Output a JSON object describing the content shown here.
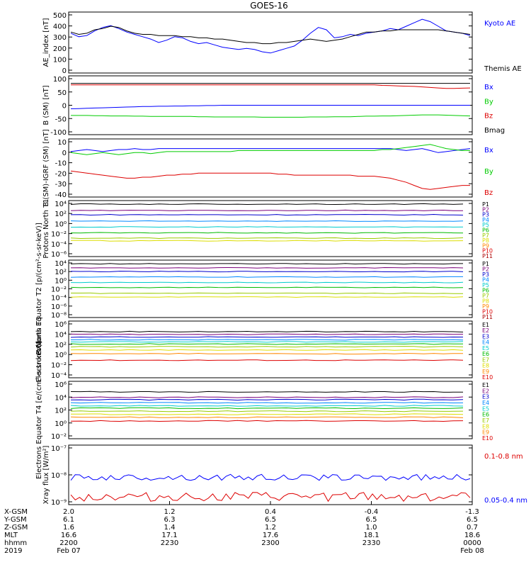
{
  "title": "GOES-16",
  "chart_data": [
    {
      "type": "line",
      "ylabel": "AE_index [nT]",
      "y_ticks": [
        "500",
        "400",
        "300",
        "200",
        "100",
        "0"
      ],
      "ylim": [
        0,
        500
      ],
      "legend": [
        {
          "label": "Kyoto AE",
          "color": "#0000ff"
        },
        {
          "label": "Themis AE",
          "color": "#000000"
        }
      ],
      "series": [
        {
          "name": "Kyoto AE",
          "color": "#0000ff",
          "values": [
            330,
            300,
            310,
            350,
            380,
            395,
            370,
            340,
            320,
            300,
            280,
            250,
            270,
            300,
            290,
            260,
            240,
            250,
            230,
            210,
            200,
            190,
            200,
            190,
            170,
            160,
            180,
            200,
            220,
            270,
            330,
            380,
            360,
            290,
            300,
            320,
            310,
            330,
            340,
            350,
            370,
            360,
            390,
            420,
            450,
            430,
            390,
            350,
            340,
            330,
            310
          ]
        },
        {
          "name": "Themis AE",
          "color": "#000000",
          "values": [
            340,
            320,
            330,
            360,
            370,
            390,
            380,
            350,
            330,
            320,
            320,
            310,
            310,
            310,
            300,
            300,
            290,
            290,
            280,
            280,
            270,
            260,
            250,
            250,
            240,
            240,
            250,
            250,
            260,
            270,
            280,
            270,
            260,
            270,
            280,
            300,
            320,
            340,
            340,
            350,
            350,
            360,
            360,
            360,
            360,
            360,
            360,
            350,
            340,
            330,
            320
          ]
        }
      ]
    },
    {
      "type": "line",
      "ylabel": "B (SM) [nT]",
      "y_ticks": [
        "100",
        "50",
        "0",
        "-50",
        "-100"
      ],
      "ylim": [
        -110,
        110
      ],
      "legend": [
        {
          "label": "Bx",
          "color": "#0000ff"
        },
        {
          "label": "By",
          "color": "#00cc00"
        },
        {
          "label": "Bz",
          "color": "#dd0000"
        },
        {
          "label": "Bmag",
          "color": "#000000"
        }
      ],
      "series": [
        {
          "name": "Bmag",
          "color": "#000000",
          "values": [
            86,
            86,
            86,
            86,
            86,
            86,
            86,
            86,
            86,
            86,
            86,
            86,
            86,
            86,
            86,
            86,
            86,
            86,
            86,
            86,
            86,
            86,
            86,
            86,
            86,
            86,
            86,
            86,
            86,
            86,
            86,
            86,
            86,
            86,
            86,
            86,
            86,
            86,
            86,
            86,
            86,
            86,
            86,
            86,
            86,
            86,
            86,
            86,
            86,
            86,
            86
          ]
        },
        {
          "name": "Bz",
          "color": "#dd0000",
          "values": [
            80,
            80,
            80,
            80,
            80,
            80,
            80,
            80,
            80,
            80,
            80,
            80,
            80,
            80,
            80,
            80,
            80,
            80,
            80,
            80,
            80,
            80,
            80,
            80,
            80,
            80,
            80,
            80,
            80,
            80,
            80,
            80,
            80,
            80,
            80,
            80,
            80,
            80,
            80,
            78,
            77,
            76,
            75,
            74,
            72,
            70,
            68,
            66,
            66,
            67,
            68
          ]
        },
        {
          "name": "Bx",
          "color": "#0000ff",
          "values": [
            -14,
            -13,
            -12,
            -11,
            -10,
            -9,
            -8,
            -7,
            -6,
            -5,
            -5,
            -4,
            -4,
            -3,
            -3,
            -2,
            -2,
            -1,
            -1,
            0,
            0,
            0,
            0,
            0,
            0,
            0,
            0,
            0,
            0,
            0,
            0,
            0,
            0,
            0,
            0,
            0,
            0,
            0,
            0,
            0,
            0,
            0,
            0,
            0,
            0,
            0,
            0,
            0,
            0,
            0,
            0
          ]
        },
        {
          "name": "By",
          "color": "#00cc00",
          "values": [
            -40,
            -40,
            -40,
            -41,
            -41,
            -42,
            -42,
            -42,
            -43,
            -43,
            -44,
            -44,
            -44,
            -44,
            -44,
            -44,
            -45,
            -45,
            -46,
            -46,
            -46,
            -46,
            -46,
            -46,
            -47,
            -47,
            -47,
            -47,
            -47,
            -47,
            -46,
            -46,
            -46,
            -45,
            -45,
            -45,
            -44,
            -43,
            -43,
            -42,
            -42,
            -41,
            -40,
            -39,
            -38,
            -38,
            -38,
            -39,
            -40,
            -41,
            -42
          ]
        }
      ]
    },
    {
      "type": "line",
      "ylabel": "B (SM)-IGRF (SM) [nT]",
      "y_ticks": [
        "10",
        "0",
        "-10",
        "-20",
        "-30",
        "-40"
      ],
      "ylim": [
        -42,
        12
      ],
      "legend": [
        {
          "label": "Bx",
          "color": "#0000ff"
        },
        {
          "label": "By",
          "color": "#00cc00"
        },
        {
          "label": "Bz",
          "color": "#dd0000"
        }
      ],
      "series": [
        {
          "name": "Bx",
          "color": "#0000ff",
          "values": [
            1,
            2,
            3,
            2,
            1,
            2,
            3,
            3,
            4,
            3,
            3,
            4,
            4,
            4,
            4,
            4,
            4,
            4,
            4,
            4,
            4,
            4,
            4,
            4,
            4,
            4,
            4,
            4,
            4,
            4,
            4,
            4,
            4,
            4,
            4,
            4,
            4,
            4,
            4,
            4,
            4,
            3,
            2,
            3,
            4,
            2,
            0,
            1,
            2,
            3,
            4
          ]
        },
        {
          "name": "By",
          "color": "#00cc00",
          "values": [
            0,
            -1,
            -2,
            -1,
            0,
            -1,
            -2,
            -1,
            0,
            0,
            -1,
            0,
            1,
            1,
            1,
            1,
            1,
            1,
            1,
            1,
            1,
            2,
            2,
            2,
            2,
            2,
            2,
            2,
            2,
            2,
            2,
            2,
            2,
            2,
            2,
            2,
            2,
            2,
            2,
            3,
            3,
            4,
            5,
            6,
            7,
            8,
            6,
            4,
            3,
            2,
            2
          ]
        },
        {
          "name": "Bz",
          "color": "#dd0000",
          "values": [
            -18,
            -19,
            -20,
            -21,
            -22,
            -23,
            -24,
            -25,
            -25,
            -24,
            -24,
            -23,
            -22,
            -22,
            -21,
            -21,
            -20,
            -20,
            -20,
            -20,
            -20,
            -20,
            -20,
            -20,
            -20,
            -20,
            -21,
            -21,
            -22,
            -22,
            -22,
            -22,
            -22,
            -22,
            -22,
            -22,
            -23,
            -23,
            -23,
            -24,
            -25,
            -27,
            -29,
            -32,
            -35,
            -36,
            -35,
            -34,
            -33,
            -32,
            -32
          ]
        }
      ]
    },
    {
      "type": "line",
      "ylabel": "Protons North T1",
      "scale": "log",
      "y_ticks": [
        "10⁴",
        "10²",
        "10⁰",
        "10⁻²",
        "10⁻⁴",
        "10⁻⁶"
      ],
      "ylim_exp": [
        -6,
        4
      ],
      "legend": [
        {
          "label": "P1",
          "color": "#000000"
        },
        {
          "label": "P2",
          "color": "#7a007a"
        },
        {
          "label": "P3",
          "color": "#0000cc"
        },
        {
          "label": "P4",
          "color": "#0088ff"
        },
        {
          "label": "P5",
          "color": "#00cccc"
        },
        {
          "label": "P6",
          "color": "#00bb00"
        },
        {
          "label": "P7",
          "color": "#99cc00"
        },
        {
          "label": "P8",
          "color": "#dddd00"
        },
        {
          "label": "P9",
          "color": "#ff8800"
        },
        {
          "label": "P10",
          "color": "#dd0000"
        },
        {
          "label": "P11",
          "color": "#aa0000"
        }
      ],
      "levels": [
        {
          "name": "P1",
          "color": "#000000",
          "base": 3.6
        },
        {
          "name": "P2",
          "color": "#7a007a",
          "base": 2.4
        },
        {
          "name": "P3",
          "color": "#0000cc",
          "base": 1.6
        },
        {
          "name": "P4",
          "color": "#0088ff",
          "base": 0.4
        },
        {
          "name": "P5",
          "color": "#00cccc",
          "base": -0.7
        },
        {
          "name": "P6",
          "color": "#00bb00",
          "base": -1.8
        },
        {
          "name": "P7",
          "color": "#99cc00",
          "base": -2.8
        },
        {
          "name": "P8",
          "color": "#dddd00",
          "base": -3.3
        }
      ]
    },
    {
      "type": "line",
      "ylabel": "Protons Equator T2 [p/(cm²-s-sr-keV)]",
      "scale": "log",
      "y_ticks": [
        "10⁴",
        "10²",
        "10⁰",
        "10⁻²",
        "10⁻⁴",
        "10⁻⁶",
        "10⁻⁸"
      ],
      "ylim_exp": [
        -8,
        4
      ],
      "legend": [
        {
          "label": "P1",
          "color": "#000000"
        },
        {
          "label": "P2",
          "color": "#7a007a"
        },
        {
          "label": "P3",
          "color": "#0000cc"
        },
        {
          "label": "P4",
          "color": "#0088ff"
        },
        {
          "label": "P5",
          "color": "#00cccc"
        },
        {
          "label": "P6",
          "color": "#00bb00"
        },
        {
          "label": "P7",
          "color": "#99cc00"
        },
        {
          "label": "P8",
          "color": "#dddd00"
        },
        {
          "label": "P9",
          "color": "#ff8800"
        },
        {
          "label": "P10",
          "color": "#dd0000"
        },
        {
          "label": "P11",
          "color": "#aa0000"
        }
      ],
      "levels": [
        {
          "name": "P1",
          "color": "#000000",
          "base": 3.5
        },
        {
          "name": "P2",
          "color": "#7a007a",
          "base": 2.6
        },
        {
          "name": "P3",
          "color": "#0000cc",
          "base": 1.8
        },
        {
          "name": "P4",
          "color": "#0088ff",
          "base": 0.6
        },
        {
          "name": "P5",
          "color": "#00cccc",
          "base": -0.6
        },
        {
          "name": "P6",
          "color": "#00bb00",
          "base": -1.7
        },
        {
          "name": "P7",
          "color": "#99cc00",
          "base": -3.0
        },
        {
          "name": "P8",
          "color": "#dddd00",
          "base": -3.8
        }
      ]
    },
    {
      "type": "line",
      "ylabel": "Electrons North T3",
      "scale": "log",
      "y_ticks": [
        "10⁶",
        "10⁴",
        "10²",
        "10⁰",
        "10⁻²",
        "10⁻⁴"
      ],
      "ylim_exp": [
        -4,
        6
      ],
      "legend": [
        {
          "label": "E1",
          "color": "#000000"
        },
        {
          "label": "E2",
          "color": "#7a007a"
        },
        {
          "label": "E3",
          "color": "#0000cc"
        },
        {
          "label": "E4",
          "color": "#0088ff"
        },
        {
          "label": "E5",
          "color": "#00cccc"
        },
        {
          "label": "E6",
          "color": "#00bb00"
        },
        {
          "label": "E7",
          "color": "#99cc00"
        },
        {
          "label": "E8",
          "color": "#dddd00"
        },
        {
          "label": "E9",
          "color": "#ff8800"
        },
        {
          "label": "E10",
          "color": "#dd0000"
        }
      ],
      "levels": [
        {
          "name": "E1",
          "color": "#000000",
          "base": 4.3
        },
        {
          "name": "E2",
          "color": "#7a007a",
          "base": 3.8
        },
        {
          "name": "E3",
          "color": "#0000cc",
          "base": 3.3
        },
        {
          "name": "E4",
          "color": "#0088ff",
          "base": 2.8
        },
        {
          "name": "E5",
          "color": "#00cccc",
          "base": 2.4
        },
        {
          "name": "E6",
          "color": "#00bb00",
          "base": 2.0
        },
        {
          "name": "E7",
          "color": "#99cc00",
          "base": 1.5
        },
        {
          "name": "E8",
          "color": "#dddd00",
          "base": 0.9
        },
        {
          "name": "E9",
          "color": "#ff8800",
          "base": 0.2
        },
        {
          "name": "E10",
          "color": "#dd0000",
          "base": -1.0
        }
      ]
    },
    {
      "type": "line",
      "ylabel": "Electrons Equator T4 [e/(cm²-s-sr-keV)]",
      "scale": "log",
      "y_ticks": [
        "10⁶",
        "10⁴",
        "10²",
        "10⁰",
        "10⁻²"
      ],
      "ylim_exp": [
        -3,
        6
      ],
      "legend": [
        {
          "label": "E1",
          "color": "#000000"
        },
        {
          "label": "E2",
          "color": "#7a007a"
        },
        {
          "label": "E3",
          "color": "#0000cc"
        },
        {
          "label": "E4",
          "color": "#0088ff"
        },
        {
          "label": "E5",
          "color": "#00cccc"
        },
        {
          "label": "E6",
          "color": "#00bb00"
        },
        {
          "label": "E7",
          "color": "#99cc00"
        },
        {
          "label": "E8",
          "color": "#dddd00"
        },
        {
          "label": "E9",
          "color": "#ff8800"
        },
        {
          "label": "E10",
          "color": "#dd0000"
        }
      ],
      "levels": [
        {
          "name": "E1",
          "color": "#000000",
          "base": 4.5
        },
        {
          "name": "E2",
          "color": "#7a007a",
          "base": 3.6
        },
        {
          "name": "E3",
          "color": "#0000cc",
          "base": 3.2
        },
        {
          "name": "E4",
          "color": "#0088ff",
          "base": 2.7
        },
        {
          "name": "E5",
          "color": "#00cccc",
          "base": 2.2
        },
        {
          "name": "E6",
          "color": "#00bb00",
          "base": 1.8
        },
        {
          "name": "E7",
          "color": "#99cc00",
          "base": 1.3
        },
        {
          "name": "E8",
          "color": "#dddd00",
          "base": 0.8
        },
        {
          "name": "E9",
          "color": "#ff8800",
          "base": 0.3
        },
        {
          "name": "E10",
          "color": "#dd0000",
          "base": -0.3
        }
      ]
    },
    {
      "type": "line",
      "ylabel": "Xray flux [W/m²]",
      "scale": "log",
      "y_ticks": [
        "10⁻⁷",
        "10⁻⁸",
        "10⁻⁹"
      ],
      "ylim_exp": [
        -9.2,
        -7
      ],
      "legend": [
        {
          "label": "0.1-0.8 nm",
          "color": "#dd0000"
        },
        {
          "label": "0.05-0.4 nm",
          "color": "#0000ff"
        }
      ],
      "series_exp": [
        {
          "name": "0.05-0.4 nm",
          "color": "#0000ff",
          "base": -8.2,
          "noise": 0.12
        },
        {
          "name": "0.1-0.8 nm",
          "color": "#dd0000",
          "base": -8.95,
          "noise": 0.18
        }
      ]
    }
  ],
  "x_ticks": [
    {
      "x_gsm": "2.0",
      "y_gsm": "6.1",
      "z_gsm": "1.6",
      "mlt": "16.6",
      "hhmm": "2200",
      "date": "Feb 07"
    },
    {
      "x_gsm": "1.2",
      "y_gsm": "6.3",
      "z_gsm": "1.4",
      "mlt": "17.1",
      "hhmm": "2230",
      "date": ""
    },
    {
      "x_gsm": "0.4",
      "y_gsm": "6.5",
      "z_gsm": "1.2",
      "mlt": "17.6",
      "hhmm": "2300",
      "date": ""
    },
    {
      "x_gsm": "-0.4",
      "y_gsm": "6.5",
      "z_gsm": "1.0",
      "mlt": "18.1",
      "hhmm": "2330",
      "date": ""
    },
    {
      "x_gsm": "-1.3",
      "y_gsm": "6.5",
      "z_gsm": "0.7",
      "mlt": "18.6",
      "hhmm": "0000",
      "date": "Feb 08"
    }
  ],
  "row_labels": [
    "X-GSM",
    "Y-GSM",
    "Z-GSM",
    "MLT",
    "hhmm",
    "2019"
  ]
}
